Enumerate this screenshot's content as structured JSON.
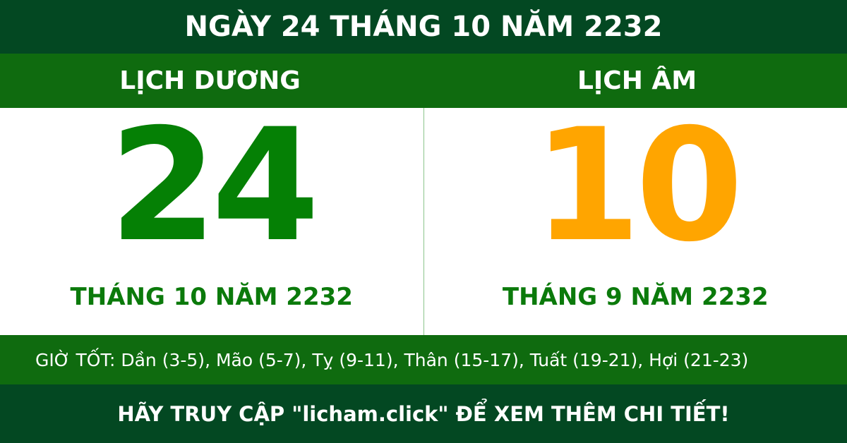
{
  "title": "NGÀY 24 THÁNG 10 NĂM 2232",
  "solar": {
    "heading": "LỊCH DƯƠNG",
    "day": "24",
    "month_year": "THÁNG 10 NĂM 2232"
  },
  "lunar": {
    "heading": "LỊCH ÂM",
    "day": "10",
    "month_year": "THÁNG 9 NĂM 2232"
  },
  "good_hours": "GIỜ TỐT: Dần (3-5), Mão (5-7), Tỵ (9-11), Thân (15-17), Tuất (19-21), Hợi (21-23)",
  "footer": "HÃY TRUY CẬP \"licham.click\" ĐỂ XEM THÊM CHI TIẾT!",
  "colors": {
    "dark_green": "#034822",
    "band_green": "#0f6b0f",
    "solar_number": "#058005",
    "lunar_number": "#ffa500"
  }
}
